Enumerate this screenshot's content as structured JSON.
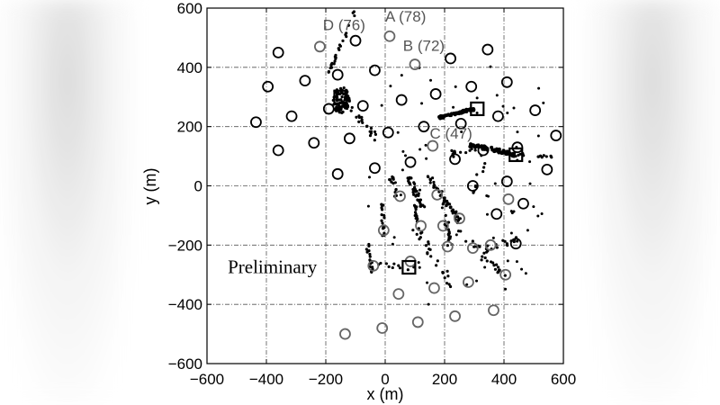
{
  "chart_data": {
    "type": "scatter",
    "title": "",
    "xlabel": "x (m)",
    "ylabel": "y (m)",
    "xlim": [
      -600,
      600
    ],
    "ylim": [
      -600,
      600
    ],
    "xticks": [
      -600,
      -400,
      -200,
      0,
      200,
      400,
      600
    ],
    "yticks": [
      -600,
      -400,
      -200,
      0,
      200,
      400,
      600
    ],
    "xtick_labels": [
      "−600",
      "−400",
      "−200",
      "0",
      "200",
      "400",
      "600"
    ],
    "ytick_labels": [
      "−600",
      "−400",
      "−200",
      "0",
      "200",
      "400",
      "600"
    ],
    "grid": true,
    "colors": {
      "detector": "#000000",
      "detector_gray": "#666666",
      "event": "#000000",
      "annotation": "#555555"
    },
    "annotations": [
      {
        "text": "D (76)",
        "x": -210,
        "y": 525,
        "color": "gray"
      },
      {
        "text": "A (78)",
        "x": 0,
        "y": 555,
        "color": "gray"
      },
      {
        "text": "B (72)",
        "x": 60,
        "y": 455,
        "color": "gray"
      },
      {
        "text": "C (47)",
        "x": 150,
        "y": 160,
        "color": "gray"
      },
      {
        "text": "Preliminary",
        "x": -530,
        "y": -295,
        "color": "black"
      }
    ],
    "squares": [
      {
        "x": -150,
        "y": 300
      },
      {
        "x": 310,
        "y": 260
      },
      {
        "x": 440,
        "y": 105
      },
      {
        "x": 80,
        "y": -275
      }
    ],
    "detectors_black": [
      [
        -435,
        215
      ],
      [
        -395,
        335
      ],
      [
        -360,
        450
      ],
      [
        -360,
        120
      ],
      [
        -315,
        235
      ],
      [
        -270,
        355
      ],
      [
        -240,
        145
      ],
      [
        -190,
        260
      ],
      [
        -160,
        375
      ],
      [
        -160,
        40
      ],
      [
        -120,
        160
      ],
      [
        -75,
        270
      ],
      [
        -100,
        490
      ],
      [
        -35,
        390
      ],
      [
        -35,
        60
      ],
      [
        10,
        180
      ],
      [
        55,
        290
      ],
      [
        85,
        80
      ],
      [
        130,
        200
      ],
      [
        170,
        310
      ],
      [
        220,
        430
      ],
      [
        235,
        90
      ],
      [
        255,
        210
      ],
      [
        290,
        335
      ],
      [
        295,
        0
      ],
      [
        330,
        120
      ],
      [
        345,
        460
      ],
      [
        380,
        235
      ],
      [
        410,
        350
      ],
      [
        410,
        15
      ],
      [
        445,
        130
      ],
      [
        465,
        -60
      ],
      [
        505,
        255
      ],
      [
        545,
        55
      ],
      [
        575,
        170
      ],
      [
        375,
        -95
      ],
      [
        440,
        -195
      ]
    ],
    "detectors_gray": [
      [
        -220,
        470
      ],
      [
        15,
        505
      ],
      [
        100,
        410
      ],
      [
        195,
        -135
      ],
      [
        160,
        135
      ],
      [
        -40,
        -270
      ],
      [
        45,
        -365
      ],
      [
        -135,
        -500
      ],
      [
        -10,
        -480
      ],
      [
        110,
        -460
      ],
      [
        235,
        -440
      ],
      [
        365,
        -420
      ],
      [
        165,
        -345
      ],
      [
        280,
        -325
      ],
      [
        405,
        -300
      ],
      [
        -5,
        -150
      ],
      [
        120,
        -135
      ],
      [
        250,
        -110
      ],
      [
        50,
        -35
      ],
      [
        175,
        -30
      ],
      [
        295,
        -210
      ],
      [
        415,
        -45
      ],
      [
        85,
        -255
      ],
      [
        210,
        -205
      ],
      [
        355,
        -200
      ]
    ]
  }
}
